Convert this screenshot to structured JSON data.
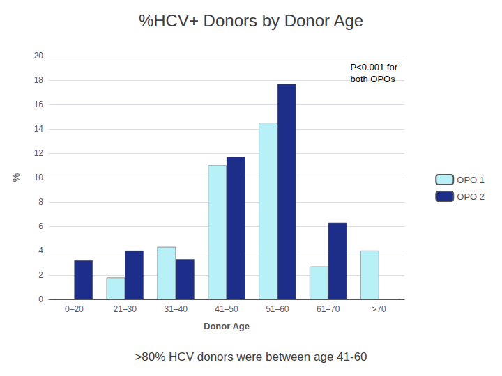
{
  "chart_data": {
    "type": "bar",
    "title": "%HCV+ Donors by Donor Age",
    "subtitle": ">80% HCV donors were between age 41-60",
    "xlabel": "Donor Age",
    "ylabel": "%",
    "annotation": "P<0.001 for\nboth OPOs",
    "categories": [
      "0–20",
      "21–30",
      "31–40",
      "41–50",
      "51–60",
      "61–70",
      ">70"
    ],
    "series": [
      {
        "name": "OPO 1",
        "color": "#b8f0f8",
        "values": [
          0,
          1.8,
          4.3,
          11.0,
          14.5,
          2.7,
          4.0
        ]
      },
      {
        "name": "OPO 2",
        "color": "#1c2e8a",
        "values": [
          3.2,
          4.0,
          3.3,
          11.7,
          17.7,
          6.3,
          0
        ]
      }
    ],
    "ylim": [
      0,
      20
    ],
    "yticks": [
      0,
      2,
      4,
      6,
      8,
      10,
      12,
      14,
      16,
      18,
      20
    ],
    "grid": true,
    "legend": "right"
  }
}
